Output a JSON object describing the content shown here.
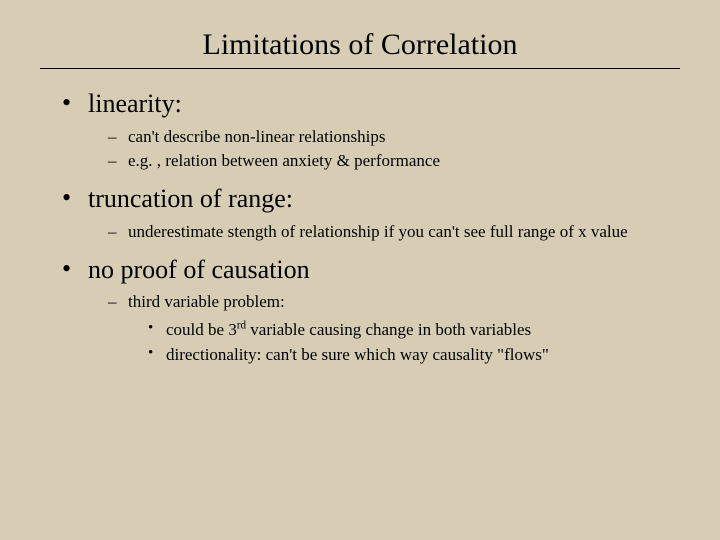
{
  "background_color": "#d6cdb4",
  "text_color": "#000000",
  "font_family": "Times New Roman",
  "title": {
    "text": "Limitations of Correlation",
    "fontsize": 30
  },
  "bullets": [
    {
      "head": "linearity:",
      "subs": [
        {
          "text": "can't describe non-linear relationships"
        },
        {
          "text": "e.g. , relation between anxiety & performance"
        }
      ]
    },
    {
      "head": "truncation of range:",
      "subs": [
        {
          "text": "underestimate stength of relationship if you can't see full range of x value"
        }
      ]
    },
    {
      "head": "no proof of causation",
      "subs": [
        {
          "text": "third variable problem:",
          "subs2": [
            {
              "text_html": "could be 3<sup>rd</sup> variable causing change in both variables"
            },
            {
              "text_html": "directionality:  can't be sure which way causality \"flows\""
            }
          ]
        }
      ]
    }
  ]
}
